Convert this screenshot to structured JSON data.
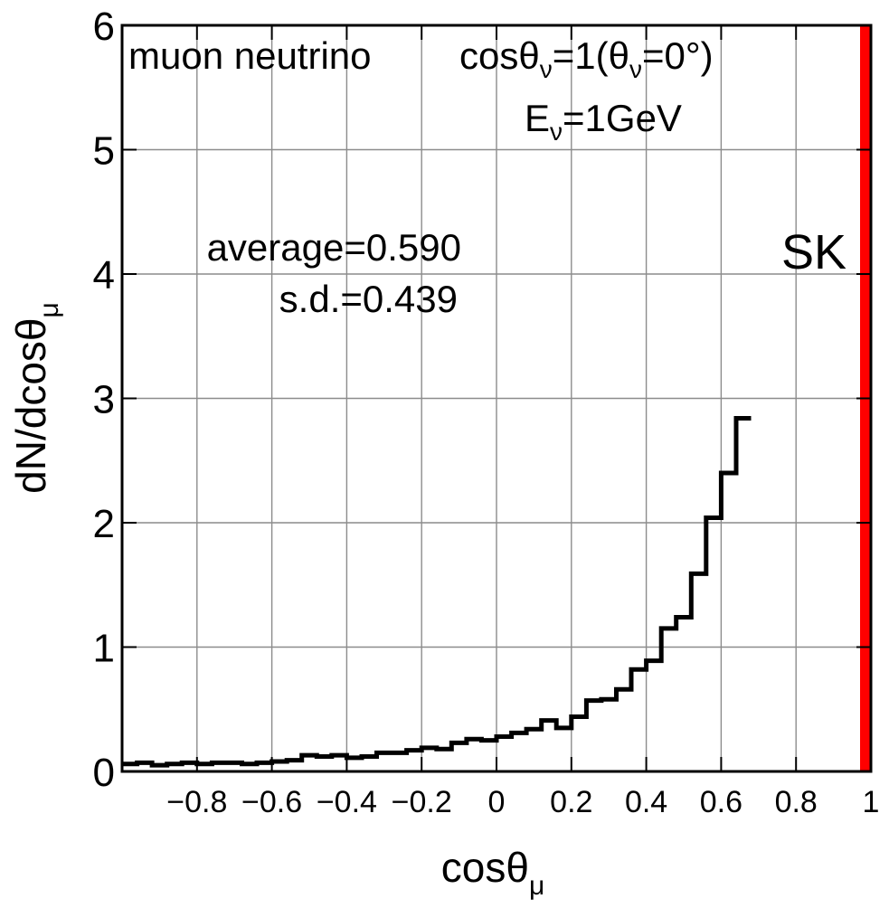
{
  "chart_data": {
    "type": "histogram",
    "xlabel": "cosθ",
    "xlabel_sub": "μ",
    "ylabel": "dN/dcosθ",
    "ylabel_sub": "μ",
    "xlim": [
      -1,
      1
    ],
    "ylim": [
      0,
      6
    ],
    "grid": true,
    "x_ticks": [
      {
        "value": -0.8,
        "label": "−0.8"
      },
      {
        "value": -0.6,
        "label": "−0.6"
      },
      {
        "value": -0.4,
        "label": "−0.4"
      },
      {
        "value": -0.2,
        "label": "−0.2"
      },
      {
        "value": 0,
        "label": "0"
      },
      {
        "value": 0.2,
        "label": "0.2"
      },
      {
        "value": 0.4,
        "label": "0.4"
      },
      {
        "value": 0.6,
        "label": "0.6"
      },
      {
        "value": 0.8,
        "label": "0.8"
      },
      {
        "value": 1,
        "label": "1"
      }
    ],
    "y_ticks": [
      {
        "value": 0,
        "label": "0"
      },
      {
        "value": 1,
        "label": "1"
      },
      {
        "value": 2,
        "label": "2"
      },
      {
        "value": 3,
        "label": "3"
      },
      {
        "value": 4,
        "label": "4"
      },
      {
        "value": 5,
        "label": "5"
      },
      {
        "value": 6,
        "label": "6"
      }
    ],
    "bin_width": 0.04,
    "bin_start": -1.0,
    "values": [
      0.06,
      0.07,
      0.05,
      0.06,
      0.07,
      0.06,
      0.07,
      0.07,
      0.06,
      0.07,
      0.08,
      0.09,
      0.13,
      0.12,
      0.13,
      0.11,
      0.12,
      0.15,
      0.15,
      0.17,
      0.19,
      0.18,
      0.23,
      0.26,
      0.25,
      0.28,
      0.31,
      0.34,
      0.41,
      0.35,
      0.44,
      0.57,
      0.58,
      0.66,
      0.82,
      0.89,
      1.15,
      1.24,
      1.59,
      2.04,
      2.4,
      2.84
    ],
    "reference_line": {
      "x": 1.0,
      "label": "SK",
      "color": "#ff0000"
    },
    "line_color": "#000000"
  },
  "annotations": {
    "particle": "muon neutrino",
    "direction_cos": "cosθ",
    "direction_sub": "ν",
    "direction_eq": "=1(θ",
    "direction_sub2": "ν",
    "direction_tail": "=0°)",
    "energy_E": "E",
    "energy_sub": "ν",
    "energy_tail": "=1GeV",
    "average": "average=0.590",
    "sd": "s.d.=0.439"
  }
}
